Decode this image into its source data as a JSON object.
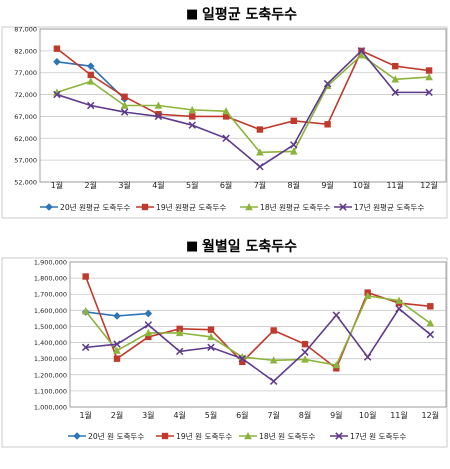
{
  "colors": {
    "s20": "#2e75b6",
    "s19": "#c0392b",
    "s18": "#8cb33a",
    "s17": "#5e3a8c",
    "grid": "#c8c8c8",
    "plot_border": "#8c8c8c"
  },
  "chart_data": [
    {
      "type": "line",
      "title": "일평균 도축두수",
      "title_bullet": "■",
      "categories": [
        "1월",
        "2월",
        "3월",
        "4월",
        "5월",
        "6월",
        "7월",
        "8월",
        "9월",
        "10월",
        "11월",
        "12월"
      ],
      "y_ticks": [
        "87,000",
        "82,000",
        "77,000",
        "72,000",
        "67,000",
        "62,000",
        "57,000",
        "52,000"
      ],
      "ylim": [
        52000,
        87000
      ],
      "y_step": 5000,
      "grid": true,
      "legend_position": "bottom",
      "series": [
        {
          "name": "20년 원평균 도축두수",
          "color_key": "s20",
          "marker": "diamond",
          "values": [
            79500,
            78500,
            71000,
            null,
            null,
            null,
            null,
            null,
            null,
            null,
            null,
            null
          ]
        },
        {
          "name": "19년 원평균 도축두수",
          "color_key": "s19",
          "marker": "square",
          "values": [
            82500,
            76500,
            71500,
            67500,
            67000,
            67000,
            64000,
            66000,
            65200,
            82000,
            78500,
            77500
          ]
        },
        {
          "name": "18년 원평균 도축두수",
          "color_key": "s18",
          "marker": "triangle",
          "values": [
            72500,
            75000,
            69500,
            69500,
            68500,
            68200,
            58800,
            59000,
            74000,
            81000,
            75500,
            76000
          ]
        },
        {
          "name": "17년 원평균 도축두수",
          "color_key": "s17",
          "marker": "x",
          "values": [
            72000,
            69500,
            68000,
            67000,
            65000,
            62000,
            55500,
            60500,
            74500,
            82000,
            72500,
            72500
          ]
        }
      ]
    },
    {
      "type": "line",
      "title": "월별일 도축두수",
      "title_bullet": "■",
      "categories": [
        "1월",
        "2월",
        "3월",
        "4월",
        "5월",
        "6월",
        "7월",
        "8월",
        "9월",
        "10월",
        "11월",
        "12월"
      ],
      "y_ticks": [
        "1,900,000",
        "1,800,000",
        "1,700,000",
        "1,600,000",
        "1,500,000",
        "1,400,000",
        "1,300,000",
        "1,200,000",
        "1,100,000",
        "1,000,000"
      ],
      "ylim": [
        1000000,
        1900000
      ],
      "y_step": 100000,
      "grid": true,
      "legend_position": "bottom",
      "series": [
        {
          "name": "20년 원 도축두수",
          "color_key": "s20",
          "marker": "diamond",
          "values": [
            1590000,
            1565000,
            1580000,
            null,
            null,
            null,
            null,
            null,
            null,
            null,
            null,
            null
          ]
        },
        {
          "name": "19년 원 도축두수",
          "color_key": "s19",
          "marker": "square",
          "values": [
            1810000,
            1300000,
            1435000,
            1485000,
            1480000,
            1280000,
            1475000,
            1390000,
            1240000,
            1710000,
            1645000,
            1625000
          ]
        },
        {
          "name": "18년 원 도축두수",
          "color_key": "s18",
          "marker": "triangle",
          "values": [
            1595000,
            1350000,
            1460000,
            1460000,
            1435000,
            1310000,
            1290000,
            1295000,
            1260000,
            1690000,
            1660000,
            1520000
          ]
        },
        {
          "name": "17년 원 도축두수",
          "color_key": "s17",
          "marker": "x",
          "values": [
            1370000,
            1390000,
            1510000,
            1345000,
            1370000,
            1300000,
            1160000,
            1340000,
            1570000,
            1310000,
            1610000,
            1450000
          ]
        }
      ]
    }
  ]
}
